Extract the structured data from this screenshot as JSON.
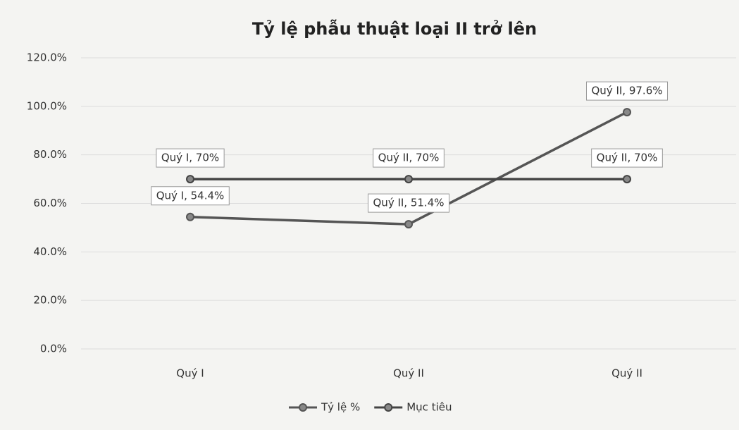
{
  "chart_data": {
    "type": "line",
    "title": "Tỷ lệ phẫu thuật loại II trở lên",
    "categories": [
      "Quý I",
      "Quý II",
      "Quý II"
    ],
    "series": [
      {
        "name": "Tỷ lệ %",
        "color": "#555555",
        "values": [
          54.4,
          51.4,
          97.6
        ],
        "value_labels": [
          "Quý I, 54.4%",
          "Quý II, 51.4%",
          "Quý II, 97.6%"
        ]
      },
      {
        "name": "Mục tiêu",
        "color": "#444444",
        "values": [
          70,
          70,
          70
        ],
        "value_labels": [
          "Quý I, 70%",
          "Quý II, 70%",
          "Quý II, 70%"
        ]
      }
    ],
    "ylim": [
      0,
      120
    ],
    "yticks": [
      {
        "value": 0,
        "label": "0.0%"
      },
      {
        "value": 20,
        "label": "20.0%"
      },
      {
        "value": 40,
        "label": "40.0%"
      },
      {
        "value": 60,
        "label": "60.0%"
      },
      {
        "value": 80,
        "label": "80.0%"
      },
      {
        "value": 100,
        "label": "100.0%"
      },
      {
        "value": 120,
        "label": "120.0%"
      }
    ],
    "grid": true,
    "legend": "bottom"
  }
}
